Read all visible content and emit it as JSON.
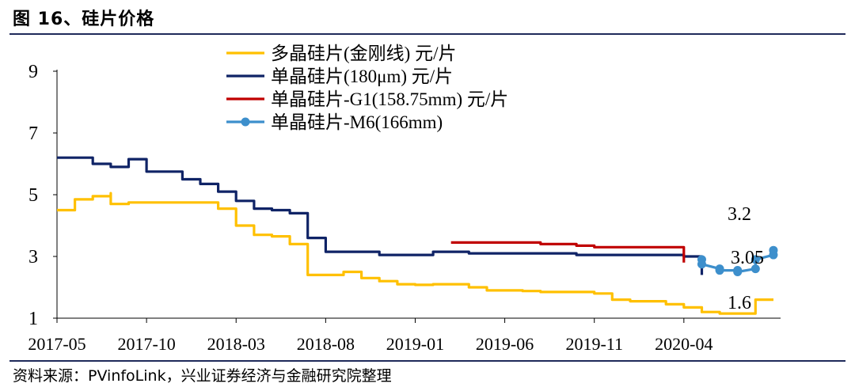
{
  "title": "图 16、硅片价格",
  "source": "资料来源：PVinfoLink，兴业证券经济与金融研究院整理",
  "colors": {
    "multi": "#ffc000",
    "mono180": "#0f2366",
    "g1": "#c00000",
    "m6": "#3d8fcc",
    "rule": "#1f2a5a"
  },
  "chart_data": {
    "type": "line",
    "title": "",
    "xlabel": "",
    "ylabel": "",
    "ylim": [
      1,
      9
    ],
    "yticks": [
      "1",
      "3",
      "5",
      "7",
      "9"
    ],
    "xticks": [
      "2017-05",
      "2017-10",
      "2018-03",
      "2018-08",
      "2019-01",
      "2019-06",
      "2019-11",
      "2020-04"
    ],
    "legend_position": "top",
    "annotations": [
      "3.2",
      "3.05",
      "1.6"
    ],
    "series": [
      {
        "name": "多晶硅片(金刚线) 元/片",
        "color_key": "multi",
        "marker": false,
        "points": [
          [
            "2017-05",
            4.5
          ],
          [
            "2017-06",
            4.85
          ],
          [
            "2017-07",
            4.95
          ],
          [
            "2017-08",
            5.05
          ],
          [
            "2017-08",
            4.7
          ],
          [
            "2017-09",
            4.75
          ],
          [
            "2017-12",
            4.75
          ],
          [
            "2018-01",
            4.75
          ],
          [
            "2018-02",
            4.55
          ],
          [
            "2018-03",
            4.0
          ],
          [
            "2018-04",
            3.7
          ],
          [
            "2018-05",
            3.65
          ],
          [
            "2018-06",
            3.4
          ],
          [
            "2018-07",
            2.4
          ],
          [
            "2018-08",
            2.4
          ],
          [
            "2018-09",
            2.5
          ],
          [
            "2018-10",
            2.3
          ],
          [
            "2018-11",
            2.2
          ],
          [
            "2018-12",
            2.1
          ],
          [
            "2019-01",
            2.08
          ],
          [
            "2019-02",
            2.1
          ],
          [
            "2019-03",
            2.1
          ],
          [
            "2019-04",
            2.0
          ],
          [
            "2019-05",
            1.9
          ],
          [
            "2019-06",
            1.9
          ],
          [
            "2019-07",
            1.88
          ],
          [
            "2019-08",
            1.85
          ],
          [
            "2019-09",
            1.85
          ],
          [
            "2019-10",
            1.85
          ],
          [
            "2019-11",
            1.8
          ],
          [
            "2019-12",
            1.6
          ],
          [
            "2020-01",
            1.55
          ],
          [
            "2020-02",
            1.55
          ],
          [
            "2020-03",
            1.45
          ],
          [
            "2020-04",
            1.35
          ],
          [
            "2020-05",
            1.2
          ],
          [
            "2020-06",
            1.15
          ],
          [
            "2020-07",
            1.15
          ],
          [
            "2020-08",
            1.6
          ],
          [
            "2020-09",
            1.6
          ]
        ]
      },
      {
        "name": "单晶硅片(180μm) 元/片",
        "color_key": "mono180",
        "marker": false,
        "points": [
          [
            "2017-05",
            6.2
          ],
          [
            "2017-06",
            6.2
          ],
          [
            "2017-07",
            6.0
          ],
          [
            "2017-08",
            5.9
          ],
          [
            "2017-09",
            6.15
          ],
          [
            "2017-10",
            6.1
          ],
          [
            "2017-10",
            5.75
          ],
          [
            "2017-11",
            5.75
          ],
          [
            "2017-12",
            5.5
          ],
          [
            "2018-01",
            5.35
          ],
          [
            "2018-02",
            5.1
          ],
          [
            "2018-03",
            4.8
          ],
          [
            "2018-04",
            4.55
          ],
          [
            "2018-05",
            4.5
          ],
          [
            "2018-06",
            4.4
          ],
          [
            "2018-07",
            3.6
          ],
          [
            "2018-08",
            3.15
          ],
          [
            "2018-09",
            3.15
          ],
          [
            "2018-10",
            3.15
          ],
          [
            "2018-11",
            3.05
          ],
          [
            "2018-12",
            3.05
          ],
          [
            "2019-01",
            3.05
          ],
          [
            "2019-02",
            3.15
          ],
          [
            "2019-03",
            3.15
          ],
          [
            "2019-04",
            3.1
          ],
          [
            "2019-06",
            3.1
          ],
          [
            "2019-09",
            3.1
          ],
          [
            "2019-10",
            3.05
          ],
          [
            "2020-03",
            3.05
          ],
          [
            "2020-04",
            3.0
          ],
          [
            "2020-05",
            2.4
          ]
        ]
      },
      {
        "name": "单晶硅片-G1(158.75mm) 元/片",
        "color_key": "g1",
        "marker": false,
        "points": [
          [
            "2019-03",
            3.45
          ],
          [
            "2019-07",
            3.45
          ],
          [
            "2019-08",
            3.4
          ],
          [
            "2019-10",
            3.35
          ],
          [
            "2019-11",
            3.3
          ],
          [
            "2020-03",
            3.3
          ],
          [
            "2020-04",
            3.15
          ],
          [
            "2020-04",
            2.8
          ]
        ]
      },
      {
        "name": "单晶硅片-M6(166mm)",
        "color_key": "m6",
        "marker": true,
        "points": [
          [
            "2020-05",
            2.9
          ],
          [
            "2020-05",
            2.75
          ],
          [
            "2020-06",
            2.6
          ],
          [
            "2020-06",
            2.55
          ],
          [
            "2020-07",
            2.55
          ],
          [
            "2020-07",
            2.5
          ],
          [
            "2020-08",
            2.6
          ],
          [
            "2020-08",
            2.9
          ],
          [
            "2020-09",
            3.05
          ],
          [
            "2020-09",
            3.2
          ]
        ]
      }
    ]
  }
}
